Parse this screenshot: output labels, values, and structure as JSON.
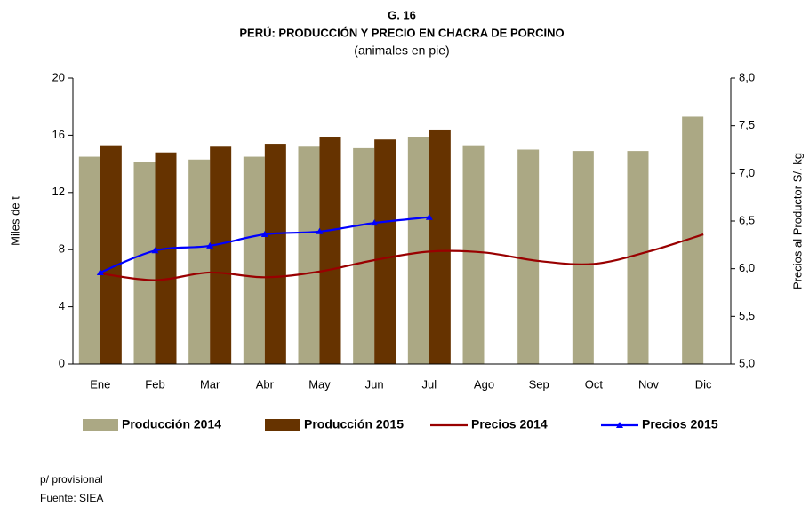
{
  "chart_data": {
    "type": "bar",
    "title": "G. 16",
    "subtitle": "PERÚ: PRODUCCIÓN Y PRECIO EN CHACRA DE PORCINO",
    "subtitle2": "(animales en pie)",
    "ylabel": "Miles de t",
    "y2label": "Precios al Productor S/. kg",
    "categories": [
      "Ene",
      "Feb",
      "Mar",
      "Abr",
      "May",
      "Jun",
      "Jul",
      "Ago",
      "Sep",
      "Oct",
      "Nov",
      "Dic"
    ],
    "series": [
      {
        "name": "Producción 2014",
        "type": "bar",
        "color": "#aba884",
        "values": [
          14.5,
          14.1,
          14.3,
          14.5,
          15.2,
          15.1,
          15.9,
          15.3,
          15.0,
          14.9,
          14.9,
          17.3
        ]
      },
      {
        "name": "Producción 2015",
        "type": "bar",
        "color": "#663300",
        "values": [
          15.3,
          14.8,
          15.2,
          15.4,
          15.9,
          15.7,
          16.4,
          null,
          null,
          null,
          null,
          null
        ]
      },
      {
        "name": "Precios 2014",
        "type": "line",
        "axis": "y2",
        "color": "#990000",
        "values": [
          5.95,
          5.88,
          5.96,
          5.91,
          5.97,
          6.09,
          6.18,
          6.17,
          6.08,
          6.05,
          6.18,
          6.36
        ]
      },
      {
        "name": "Precios 2015",
        "type": "line",
        "axis": "y2",
        "color": "#0000ff",
        "marker": "triangle",
        "values": [
          5.96,
          6.19,
          6.24,
          6.36,
          6.39,
          6.48,
          6.54,
          null,
          null,
          null,
          null,
          null
        ]
      }
    ],
    "ylim": [
      0,
      20
    ],
    "yticks": [
      0,
      4,
      8,
      12,
      16,
      20
    ],
    "y2lim": [
      5,
      8
    ],
    "y2ticks": [
      {
        "value": 5,
        "label": "5,0"
      },
      {
        "value": 5.5,
        "label": "5,5"
      },
      {
        "value": 6,
        "label": "6,0"
      },
      {
        "value": 6.5,
        "label": "6,5"
      },
      {
        "value": 7,
        "label": "7,0"
      },
      {
        "value": 7.5,
        "label": "7,5"
      },
      {
        "value": 8,
        "label": "8,0"
      }
    ],
    "grid": false,
    "legend": "bottom",
    "notes": [
      "p/ provisional",
      "Fuente:  SIEA"
    ]
  }
}
